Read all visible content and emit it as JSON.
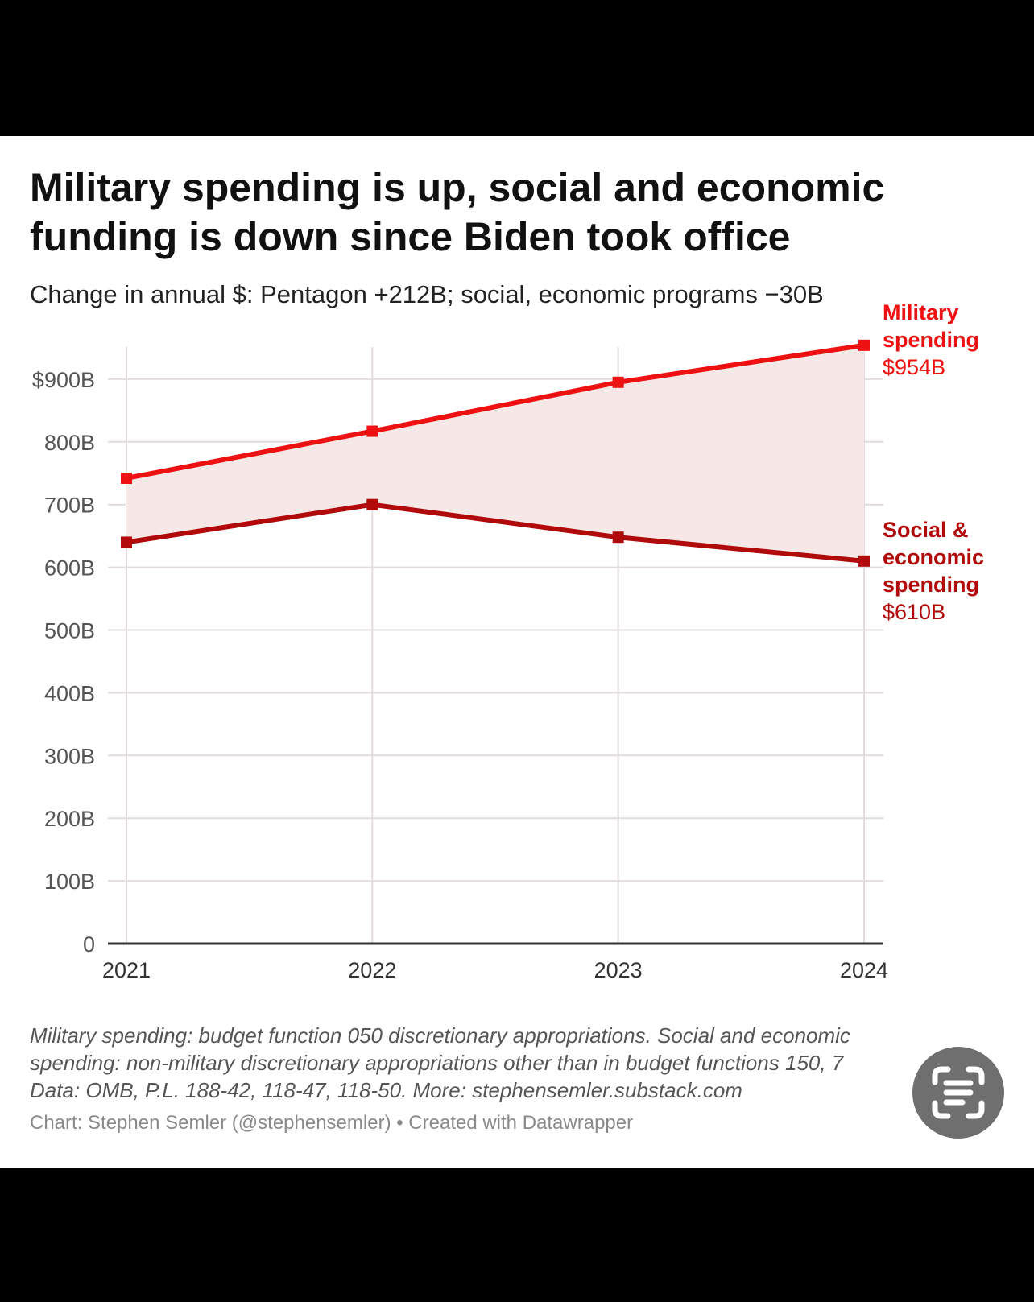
{
  "chart_data": {
    "type": "line",
    "title": "Military spending is up, social and economic funding is down since Biden took office",
    "subtitle": "Change in annual $: Pentagon +212B; social, economic programs −30B",
    "x": [
      "2021",
      "2022",
      "2023",
      "2024"
    ],
    "y_ticks": [
      "0",
      "100B",
      "200B",
      "300B",
      "400B",
      "500B",
      "600B",
      "700B",
      "800B",
      "$900B"
    ],
    "ylim": [
      0,
      954
    ],
    "grid": true,
    "shaded_gap_between_series": true,
    "series": [
      {
        "name": "Military spending",
        "label_lines": [
          "Military",
          "spending"
        ],
        "value_label": "$954B",
        "color": "#ee1111",
        "values": [
          742,
          817,
          895,
          954
        ]
      },
      {
        "name": "Social & economic spending",
        "label_lines": [
          "Social &",
          "economic",
          "spending"
        ],
        "value_label": "$610B",
        "color": "#b00a0a",
        "values": [
          640,
          700,
          648,
          610
        ]
      }
    ],
    "notes": [
      "Military spending: budget function 050 discretionary appropriations. Social and economic",
      "spending: non-military discretionary appropriations other than in budget functions 150, 7",
      "Data: OMB, P.L. 188-42, 118-47, 118-50. More: stephensemler.substack.com"
    ],
    "byline": "Chart: Stephen Semler (@stephensemler) • Created with Datawrapper"
  },
  "colors": {
    "military": "#ee1111",
    "social": "#b00a0a",
    "fill_between": "#f7e8e8",
    "grid": "#e2dcdc"
  },
  "overlay": {
    "lens_button_icon": "visual-lookup-icon"
  }
}
